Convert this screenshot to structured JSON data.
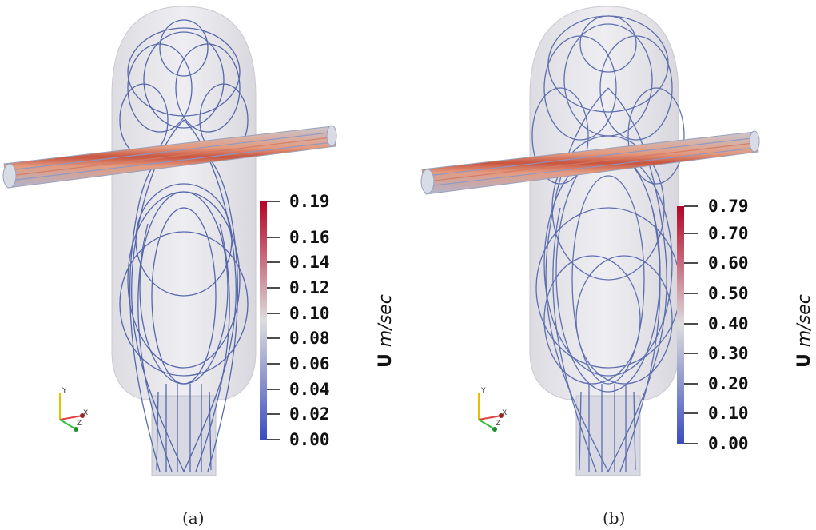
{
  "panels": [
    {
      "id": "a",
      "caption": "(a)",
      "colorbar": {
        "symbol": "U",
        "unit": "m/sec",
        "tick_labels": [
          "0.19",
          "0.16",
          "0.14",
          "0.12",
          "0.10",
          "0.08",
          "0.06",
          "0.04",
          "0.02",
          "0.00"
        ],
        "min": 0.0,
        "max": 0.19
      },
      "axes_triad": {
        "x": "X",
        "y": "Y",
        "z": "Z"
      }
    },
    {
      "id": "b",
      "caption": "(b)",
      "colorbar": {
        "symbol": "U",
        "unit": "m/sec",
        "tick_labels": [
          "0.79",
          "0.70",
          "0.60",
          "0.50",
          "0.40",
          "0.30",
          "0.20",
          "0.10",
          "0.00"
        ],
        "min": 0.0,
        "max": 0.79
      },
      "axes_triad": {
        "x": "X",
        "y": "Y",
        "z": "Z"
      }
    }
  ],
  "colors": {
    "colormap_low": "#3b4cc0",
    "colormap_mid": "#dddddd",
    "colormap_high": "#b40426",
    "streamline": "#3d52a0",
    "vessel_fill": "#e9e9ec"
  }
}
